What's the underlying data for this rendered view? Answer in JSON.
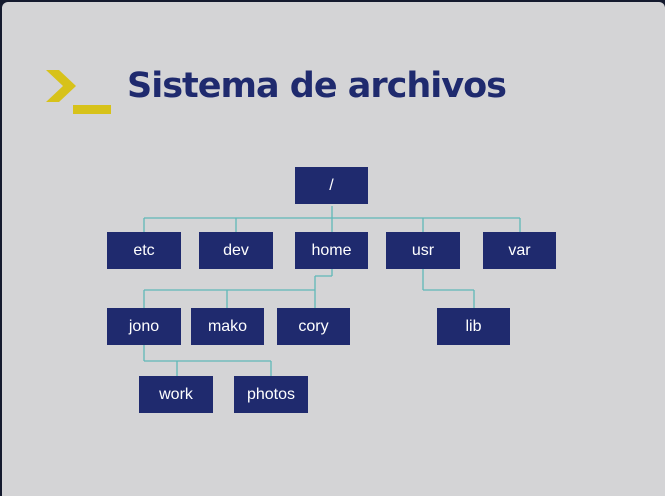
{
  "title": "Sistema de archivos",
  "colors": {
    "node_fill": "#1f2a6e",
    "node_text": "#ffffff",
    "connector": "#5fb8b8",
    "logo": "#d7c21a",
    "background": "#d4d4d6"
  },
  "tree": {
    "root": "/",
    "level1": [
      "etc",
      "dev",
      "home",
      "usr",
      "var"
    ],
    "home_children": [
      "jono",
      "mako",
      "cory"
    ],
    "usr_children": [
      "lib"
    ],
    "jono_children": [
      "work",
      "photos"
    ]
  }
}
